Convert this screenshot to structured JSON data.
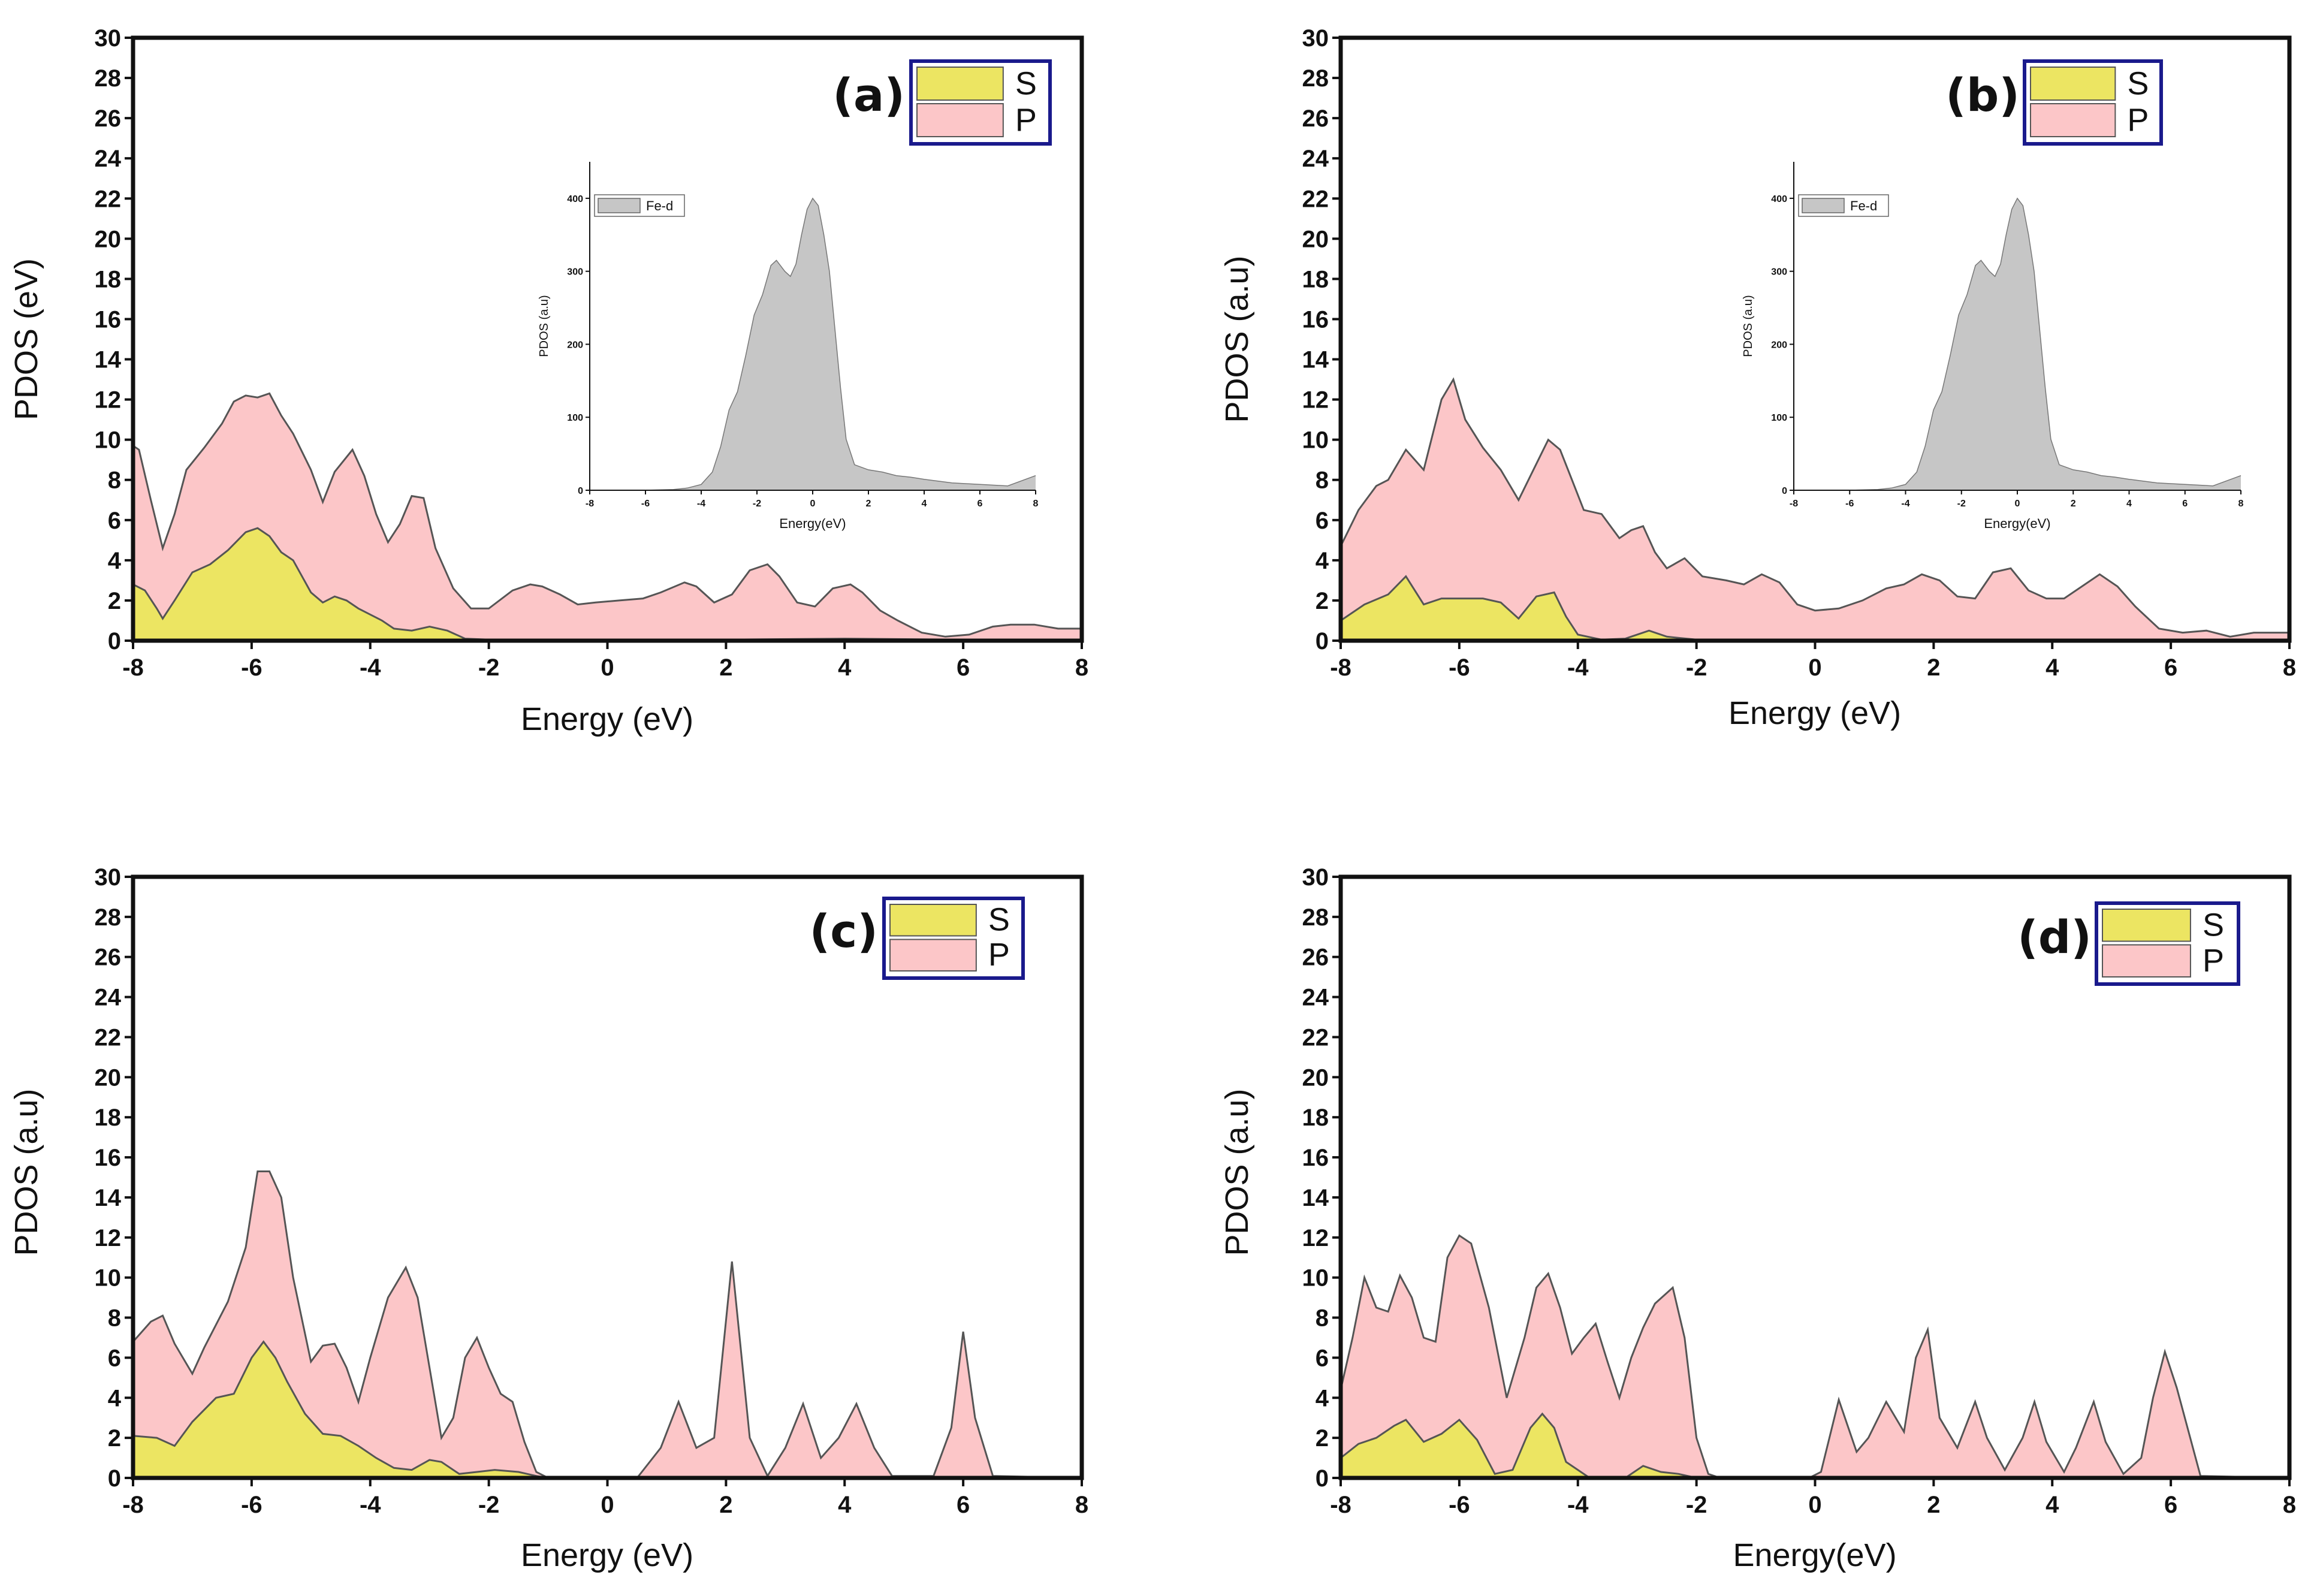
{
  "figure": {
    "background": "#ffffff"
  },
  "colors": {
    "s_fill": "#ece562",
    "p_fill": "#fcc6c8",
    "fe_fill": "#c6c6c6",
    "curve": "#555555",
    "legend_border": "#1a1a8c",
    "axis": "#111111"
  },
  "chart_data": [
    {
      "type": "area",
      "panel_label": "(a)",
      "xlabel": "Energy (eV)",
      "ylabel": "PDOS (eV)",
      "xlim": [
        -8,
        8
      ],
      "ylim": [
        0,
        30
      ],
      "xticks": [
        "-8",
        "-6",
        "-4",
        "-2",
        "0",
        "2",
        "4",
        "6",
        "8"
      ],
      "yticks": [
        "0",
        "2",
        "4",
        "6",
        "8",
        "10",
        "12",
        "14",
        "16",
        "18",
        "20",
        "22",
        "24",
        "26",
        "28",
        "30"
      ],
      "legend": [
        "S",
        "P"
      ],
      "legend_position": "top-right",
      "series": [
        {
          "name": "S",
          "x": [
            -8,
            -7.8,
            -7.6,
            -7.5,
            -7.3,
            -7.0,
            -6.7,
            -6.4,
            -6.1,
            -5.9,
            -5.7,
            -5.5,
            -5.3,
            -5.0,
            -4.8,
            -4.6,
            -4.4,
            -4.2,
            -4.0,
            -3.8,
            -3.6,
            -3.3,
            -3.0,
            -2.7,
            -2.4,
            -2.0,
            -1.0,
            0,
            2,
            4,
            6,
            8
          ],
          "y": [
            2.8,
            2.5,
            1.6,
            1.1,
            2.0,
            3.4,
            3.8,
            4.5,
            5.4,
            5.6,
            5.2,
            4.4,
            4.0,
            2.4,
            1.9,
            2.2,
            2.0,
            1.6,
            1.3,
            1.0,
            0.6,
            0.5,
            0.7,
            0.5,
            0.1,
            0.05,
            0.05,
            0.05,
            0.05,
            0.1,
            0.05,
            0.05
          ]
        },
        {
          "name": "P",
          "x": [
            -8,
            -7.9,
            -7.7,
            -7.5,
            -7.3,
            -7.1,
            -6.8,
            -6.5,
            -6.3,
            -6.1,
            -5.9,
            -5.7,
            -5.5,
            -5.3,
            -5.0,
            -4.8,
            -4.6,
            -4.3,
            -4.1,
            -3.9,
            -3.7,
            -3.5,
            -3.3,
            -3.1,
            -2.9,
            -2.6,
            -2.3,
            -2.0,
            -1.6,
            -1.3,
            -1.1,
            -0.8,
            -0.5,
            -0.2,
            0.2,
            0.6,
            0.9,
            1.3,
            1.5,
            1.8,
            2.1,
            2.4,
            2.7,
            2.9,
            3.2,
            3.5,
            3.8,
            4.1,
            4.3,
            4.6,
            4.9,
            5.3,
            5.7,
            6.1,
            6.5,
            6.8,
            7.2,
            7.6,
            8
          ],
          "y": [
            9.7,
            9.5,
            7.0,
            4.6,
            6.3,
            8.5,
            9.6,
            10.8,
            11.9,
            12.2,
            12.1,
            12.3,
            11.2,
            10.3,
            8.5,
            6.9,
            8.4,
            9.5,
            8.2,
            6.3,
            4.9,
            5.8,
            7.2,
            7.1,
            4.6,
            2.6,
            1.6,
            1.6,
            2.5,
            2.8,
            2.7,
            2.3,
            1.8,
            1.9,
            2.0,
            2.1,
            2.4,
            2.9,
            2.7,
            1.9,
            2.3,
            3.5,
            3.8,
            3.2,
            1.9,
            1.7,
            2.6,
            2.8,
            2.4,
            1.5,
            1.0,
            0.4,
            0.2,
            0.3,
            0.7,
            0.8,
            0.8,
            0.6,
            0.6
          ]
        }
      ],
      "inset": {
        "type": "area",
        "xlabel": "Energy(eV)",
        "ylabel": "PDOS (a.u)",
        "xlim": [
          -8,
          8
        ],
        "ylim": [
          0,
          450
        ],
        "xticks": [
          "-8",
          "-6",
          "-4",
          "-2",
          "0",
          "2",
          "4",
          "6",
          "8"
        ],
        "yticks": [
          "0",
          "100",
          "200",
          "300",
          "400"
        ],
        "legend": [
          "Fe-d"
        ],
        "series": [
          {
            "name": "Fe-d",
            "x": [
              -8,
              -6,
              -5,
              -4.5,
              -4,
              -3.6,
              -3.3,
              -3.0,
              -2.7,
              -2.4,
              -2.1,
              -1.8,
              -1.5,
              -1.3,
              -1.0,
              -0.8,
              -0.6,
              -0.4,
              -0.2,
              0.0,
              0.2,
              0.4,
              0.6,
              0.8,
              1.0,
              1.2,
              1.5,
              2.0,
              2.5,
              3.0,
              3.5,
              4.0,
              5.0,
              6.0,
              7.0,
              8.0
            ],
            "y": [
              0,
              0,
              1,
              3,
              8,
              25,
              60,
              110,
              135,
              185,
              240,
              268,
              308,
              315,
              300,
              293,
              310,
              350,
              385,
              400,
              390,
              350,
              300,
              220,
              140,
              70,
              35,
              28,
              25,
              20,
              18,
              15,
              10,
              8,
              6,
              20
            ]
          }
        ]
      }
    },
    {
      "type": "area",
      "panel_label": "(b)",
      "xlabel": "Energy (eV)",
      "ylabel": "PDOS (a.u)",
      "xlim": [
        -8,
        8
      ],
      "ylim": [
        0,
        30
      ],
      "xticks": [
        "-8",
        "-6",
        "-4",
        "-2",
        "0",
        "2",
        "4",
        "6",
        "8"
      ],
      "yticks": [
        "0",
        "2",
        "4",
        "6",
        "8",
        "10",
        "12",
        "14",
        "16",
        "18",
        "20",
        "22",
        "24",
        "26",
        "28",
        "30"
      ],
      "legend": [
        "S",
        "P"
      ],
      "legend_position": "top-right",
      "series": [
        {
          "name": "S",
          "x": [
            -8,
            -7.6,
            -7.2,
            -6.9,
            -6.6,
            -6.3,
            -6.0,
            -5.6,
            -5.3,
            -5.0,
            -4.7,
            -4.4,
            -4.2,
            -4.0,
            -3.6,
            -3.2,
            -2.8,
            -2.5,
            -2.0,
            0,
            2,
            4,
            6,
            8
          ],
          "y": [
            1.0,
            1.8,
            2.3,
            3.2,
            1.8,
            2.1,
            2.1,
            2.1,
            1.9,
            1.1,
            2.2,
            2.4,
            1.2,
            0.3,
            0.05,
            0.1,
            0.5,
            0.2,
            0.05,
            0.05,
            0.05,
            0.05,
            0.05,
            0.05
          ]
        },
        {
          "name": "P",
          "x": [
            -8,
            -7.7,
            -7.4,
            -7.2,
            -6.9,
            -6.6,
            -6.3,
            -6.1,
            -5.9,
            -5.6,
            -5.3,
            -5.0,
            -4.8,
            -4.5,
            -4.3,
            -4.1,
            -3.9,
            -3.6,
            -3.3,
            -3.1,
            -2.9,
            -2.7,
            -2.5,
            -2.2,
            -1.9,
            -1.5,
            -1.2,
            -0.9,
            -0.6,
            -0.3,
            0.0,
            0.4,
            0.8,
            1.2,
            1.5,
            1.8,
            2.1,
            2.4,
            2.7,
            3.0,
            3.3,
            3.6,
            3.9,
            4.2,
            4.5,
            4.8,
            5.1,
            5.4,
            5.8,
            6.2,
            6.6,
            7.0,
            7.4,
            8
          ],
          "y": [
            4.7,
            6.5,
            7.7,
            8.0,
            9.5,
            8.5,
            12.0,
            13.0,
            11.0,
            9.6,
            8.5,
            7.0,
            8.2,
            10.0,
            9.5,
            8.0,
            6.5,
            6.3,
            5.1,
            5.5,
            5.7,
            4.4,
            3.6,
            4.1,
            3.2,
            3.0,
            2.8,
            3.3,
            2.9,
            1.8,
            1.5,
            1.6,
            2.0,
            2.6,
            2.8,
            3.3,
            3.0,
            2.2,
            2.1,
            3.4,
            3.6,
            2.5,
            2.1,
            2.1,
            2.7,
            3.3,
            2.7,
            1.7,
            0.6,
            0.4,
            0.5,
            0.2,
            0.4,
            0.4
          ]
        }
      ],
      "inset": {
        "type": "area",
        "xlabel": "Energy(eV)",
        "ylabel": "PDOS (a.u)",
        "xlim": [
          -8,
          8
        ],
        "ylim": [
          0,
          450
        ],
        "xticks": [
          "-8",
          "-6",
          "-4",
          "-2",
          "0",
          "2",
          "4",
          "6",
          "8"
        ],
        "yticks": [
          "0",
          "100",
          "200",
          "300",
          "400"
        ],
        "legend": [
          "Fe-d"
        ],
        "series": [
          {
            "name": "Fe-d",
            "x": [
              -8,
              -6,
              -5,
              -4.5,
              -4,
              -3.6,
              -3.3,
              -3.0,
              -2.7,
              -2.4,
              -2.1,
              -1.8,
              -1.5,
              -1.3,
              -1.0,
              -0.8,
              -0.6,
              -0.4,
              -0.2,
              0.0,
              0.2,
              0.4,
              0.6,
              0.8,
              1.0,
              1.2,
              1.5,
              2.0,
              2.5,
              3.0,
              3.5,
              4.0,
              5.0,
              6.0,
              7.0,
              8.0
            ],
            "y": [
              0,
              0,
              1,
              3,
              8,
              25,
              60,
              110,
              135,
              185,
              240,
              268,
              308,
              315,
              300,
              293,
              310,
              350,
              385,
              400,
              390,
              350,
              300,
              220,
              140,
              70,
              35,
              28,
              25,
              20,
              18,
              15,
              10,
              8,
              6,
              20
            ]
          }
        ]
      }
    },
    {
      "type": "area",
      "panel_label": "(c)",
      "xlabel": "Energy (eV)",
      "ylabel": "PDOS (a.u)",
      "xlim": [
        -8,
        8
      ],
      "ylim": [
        0,
        30
      ],
      "xticks": [
        "-8",
        "-6",
        "-4",
        "-2",
        "0",
        "2",
        "4",
        "6",
        "8"
      ],
      "yticks": [
        "0",
        "2",
        "4",
        "6",
        "8",
        "10",
        "12",
        "14",
        "16",
        "18",
        "20",
        "22",
        "24",
        "26",
        "28",
        "30"
      ],
      "legend": [
        "S",
        "P"
      ],
      "legend_position": "top-right",
      "series": [
        {
          "name": "S",
          "x": [
            -8,
            -7.6,
            -7.3,
            -7.0,
            -6.6,
            -6.3,
            -6.0,
            -5.8,
            -5.6,
            -5.4,
            -5.1,
            -4.8,
            -4.5,
            -4.2,
            -3.9,
            -3.6,
            -3.3,
            -3.0,
            -2.8,
            -2.5,
            -2.2,
            -1.9,
            -1.5,
            -1.2,
            -1.0,
            0,
            2,
            4,
            6,
            8
          ],
          "y": [
            2.1,
            2.0,
            1.6,
            2.8,
            4.0,
            4.2,
            6.0,
            6.8,
            6.0,
            4.8,
            3.2,
            2.2,
            2.1,
            1.6,
            1.0,
            0.5,
            0.4,
            0.9,
            0.8,
            0.2,
            0.3,
            0.4,
            0.3,
            0.1,
            0,
            0,
            0,
            0,
            0,
            0
          ]
        },
        {
          "name": "P",
          "x": [
            -8,
            -7.7,
            -7.5,
            -7.3,
            -7.0,
            -6.8,
            -6.4,
            -6.1,
            -5.9,
            -5.7,
            -5.5,
            -5.3,
            -5.0,
            -4.8,
            -4.6,
            -4.4,
            -4.2,
            -4.0,
            -3.7,
            -3.4,
            -3.2,
            -3.0,
            -2.8,
            -2.6,
            -2.4,
            -2.2,
            -2.0,
            -1.8,
            -1.6,
            -1.4,
            -1.2,
            -1.0,
            0.5,
            0.9,
            1.2,
            1.5,
            1.8,
            2.1,
            2.4,
            2.7,
            3.0,
            3.3,
            3.6,
            3.9,
            4.2,
            4.5,
            4.8,
            5.5,
            5.8,
            6.0,
            6.2,
            6.5,
            8
          ],
          "y": [
            6.8,
            7.8,
            8.1,
            6.7,
            5.2,
            6.5,
            8.8,
            11.5,
            15.3,
            15.3,
            14.0,
            10.0,
            5.8,
            6.6,
            6.7,
            5.5,
            3.8,
            6.0,
            9.0,
            10.5,
            9.0,
            5.5,
            2.0,
            3.0,
            6.0,
            7.0,
            5.5,
            4.2,
            3.8,
            1.8,
            0.3,
            0,
            0,
            1.5,
            3.8,
            1.5,
            2.0,
            10.8,
            2.0,
            0.1,
            1.5,
            3.7,
            1.0,
            2.0,
            3.7,
            1.5,
            0.1,
            0.1,
            2.5,
            7.3,
            3.0,
            0.1,
            0
          ]
        }
      ]
    },
    {
      "type": "area",
      "panel_label": "(d)",
      "xlabel": "Energy(eV)",
      "ylabel": "PDOS (a.u)",
      "xlim": [
        -8,
        8
      ],
      "ylim": [
        0,
        30
      ],
      "xticks": [
        "-8",
        "-6",
        "-4",
        "-2",
        "0",
        "2",
        "4",
        "6",
        "8"
      ],
      "yticks": [
        "0",
        "2",
        "4",
        "6",
        "8",
        "10",
        "12",
        "14",
        "16",
        "18",
        "20",
        "22",
        "24",
        "26",
        "28",
        "30"
      ],
      "legend": [
        "S",
        "P"
      ],
      "legend_position": "top-right",
      "series": [
        {
          "name": "S",
          "x": [
            -8,
            -7.7,
            -7.4,
            -7.1,
            -6.9,
            -6.6,
            -6.3,
            -6.0,
            -5.7,
            -5.4,
            -5.1,
            -4.8,
            -4.6,
            -4.4,
            -4.2,
            -3.8,
            -3.2,
            -2.9,
            -2.6,
            -2.3,
            -2.0,
            0,
            2,
            4,
            6,
            8
          ],
          "y": [
            1.0,
            1.7,
            2.0,
            2.6,
            2.9,
            1.8,
            2.2,
            2.9,
            1.9,
            0.2,
            0.4,
            2.5,
            3.2,
            2.5,
            0.8,
            0.0,
            0.0,
            0.6,
            0.3,
            0.2,
            0.0,
            0,
            0,
            0,
            0,
            0
          ]
        },
        {
          "name": "P",
          "x": [
            -8,
            -7.8,
            -7.6,
            -7.4,
            -7.2,
            -7.0,
            -6.8,
            -6.6,
            -6.4,
            -6.2,
            -6.0,
            -5.8,
            -5.5,
            -5.2,
            -4.9,
            -4.7,
            -4.5,
            -4.3,
            -4.1,
            -3.9,
            -3.7,
            -3.5,
            -3.3,
            -3.1,
            -2.9,
            -2.7,
            -2.4,
            -2.2,
            -2.0,
            -1.8,
            -1.6,
            -0.1,
            0.1,
            0.4,
            0.7,
            0.9,
            1.2,
            1.5,
            1.7,
            1.9,
            2.1,
            2.4,
            2.7,
            2.9,
            3.2,
            3.5,
            3.7,
            3.9,
            4.2,
            4.4,
            4.7,
            4.9,
            5.2,
            5.5,
            5.7,
            5.9,
            6.1,
            6.5,
            8
          ],
          "y": [
            4.4,
            7.0,
            10.0,
            8.5,
            8.3,
            10.1,
            9.0,
            7.0,
            6.8,
            11.0,
            12.1,
            11.7,
            8.5,
            4.0,
            7.0,
            9.5,
            10.2,
            8.5,
            6.2,
            7.0,
            7.7,
            5.8,
            4.0,
            6.0,
            7.5,
            8.7,
            9.5,
            7.0,
            2.0,
            0.2,
            0,
            0,
            0.3,
            3.9,
            1.3,
            2.0,
            3.8,
            2.3,
            6.0,
            7.4,
            3.0,
            1.5,
            3.8,
            2.0,
            0.4,
            2.0,
            3.8,
            1.8,
            0.3,
            1.5,
            3.8,
            1.8,
            0.2,
            1.0,
            4.0,
            6.3,
            4.5,
            0.1,
            0
          ]
        }
      ]
    }
  ]
}
